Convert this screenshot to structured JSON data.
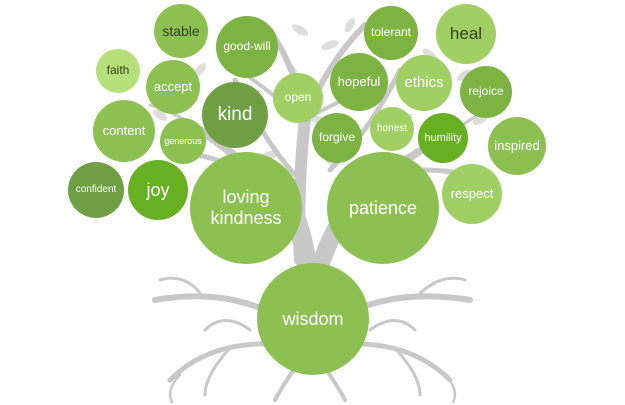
{
  "palette": {
    "branch": "#c9c9c9",
    "leaf": "#dcdcdc",
    "green_light": "#a0cf64",
    "green_mid": "#8cc152",
    "green_dark": "#7cb342",
    "green_olive": "#6f9f43",
    "green_pale": "#b6e07a",
    "green_bright": "#66b022"
  },
  "words": {
    "stable": "stable",
    "good_will": "good-will",
    "tolerant": "tolerant",
    "heal": "heal",
    "faith": "faith",
    "accept": "accept",
    "open": "open",
    "hopeful": "hopeful",
    "ethics": "ethics",
    "rejoice": "rejoice",
    "kind": "kind",
    "content": "content",
    "generous": "generous",
    "forgive": "forgive",
    "honest": "honest",
    "humility": "humility",
    "inspired": "inspired",
    "confident": "confident",
    "joy": "joy",
    "loving_kindness": "loving\nkindness",
    "patience": "patience",
    "respect": "respect",
    "wisdom": "wisdom"
  }
}
